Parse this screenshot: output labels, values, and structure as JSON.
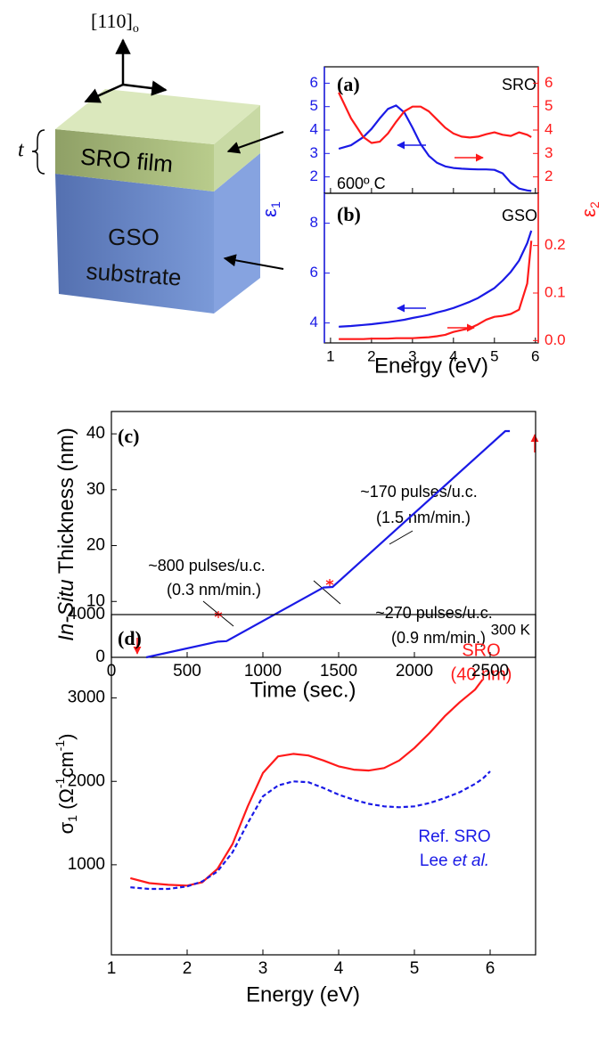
{
  "diagram": {
    "axis_label": [
      "[110]",
      "o"
    ],
    "thickness_label": "t",
    "film_label": "SRO film",
    "substrate_label": [
      "GSO",
      "substrate"
    ]
  },
  "chart_data": [
    {
      "type": "line",
      "label": "(a)",
      "annotations": [
        "SRO",
        "600º C"
      ],
      "ylabel": [
        "ε",
        "1"
      ],
      "y2label": [
        "ε",
        "2"
      ],
      "x": [
        1.2,
        1.5,
        1.8,
        2.0,
        2.2,
        2.4,
        2.6,
        2.8,
        3.0,
        3.2,
        3.4,
        3.6,
        3.8,
        4.0,
        4.2,
        4.4,
        4.6,
        4.8,
        5.0,
        5.2,
        5.4,
        5.6,
        5.8,
        5.9
      ],
      "xlim": [
        0.85,
        6.07
      ],
      "xticks": [
        1,
        2,
        3,
        4,
        5,
        6
      ],
      "ylim": [
        1.3,
        6.7
      ],
      "yticks": [
        2,
        3,
        4,
        5,
        6
      ],
      "y2lim": [
        1.3,
        6.7
      ],
      "y2ticks": [
        2,
        3,
        4,
        5,
        6
      ],
      "series": [
        {
          "color": "#1a1ae6",
          "values": [
            3.2,
            3.35,
            3.7,
            4.05,
            4.5,
            4.9,
            5.05,
            4.75,
            4.1,
            3.4,
            2.9,
            2.6,
            2.45,
            2.38,
            2.35,
            2.33,
            2.32,
            2.32,
            2.3,
            2.15,
            1.75,
            1.5,
            1.42,
            1.4
          ]
        },
        {
          "color": "#ff1a1a",
          "axis": "y2",
          "values": [
            5.6,
            4.5,
            3.7,
            3.45,
            3.5,
            3.85,
            4.35,
            4.8,
            5.0,
            5.0,
            4.8,
            4.45,
            4.1,
            3.85,
            3.72,
            3.68,
            3.72,
            3.82,
            3.9,
            3.8,
            3.75,
            3.9,
            3.8,
            3.7
          ]
        }
      ]
    },
    {
      "type": "line",
      "label": "(b)",
      "annotations": [
        "GSO"
      ],
      "xlabel": "Energy (eV)",
      "x": [
        1.2,
        1.5,
        1.8,
        2.0,
        2.2,
        2.4,
        2.6,
        2.8,
        3.0,
        3.2,
        3.4,
        3.6,
        3.8,
        4.0,
        4.2,
        4.4,
        4.6,
        4.8,
        5.0,
        5.2,
        5.4,
        5.6,
        5.8,
        5.9
      ],
      "xlim": [
        0.85,
        6.07
      ],
      "xticks": [
        1,
        2,
        3,
        4,
        5,
        6
      ],
      "ylim": [
        3.2,
        9.2
      ],
      "yticks": [
        4,
        6,
        8
      ],
      "y2lim": [
        -0.005,
        0.31
      ],
      "y2ticks": [
        {
          "value": 0,
          "label": "0.0"
        },
        0.1,
        0.2
      ],
      "series": [
        {
          "color": "#1a1ae6",
          "values": [
            3.85,
            3.88,
            3.92,
            3.95,
            3.99,
            4.03,
            4.08,
            4.13,
            4.2,
            4.26,
            4.33,
            4.42,
            4.5,
            4.6,
            4.72,
            4.85,
            5.0,
            5.2,
            5.4,
            5.7,
            6.05,
            6.5,
            7.2,
            7.7
          ]
        },
        {
          "color": "#ff1a1a",
          "axis": "y2",
          "values": [
            0.003,
            0.003,
            0.003,
            0.004,
            0.004,
            0.004,
            0.005,
            0.005,
            0.005,
            0.006,
            0.007,
            0.009,
            0.012,
            0.018,
            0.022,
            0.026,
            0.034,
            0.044,
            0.05,
            0.052,
            0.056,
            0.065,
            0.12,
            0.21
          ]
        }
      ]
    },
    {
      "type": "line",
      "label": "(c)",
      "xlabel": "Time (sec.)",
      "ylabel": [
        "In-Situ",
        " Thickness (nm)"
      ],
      "annotations": [
        "~170 pulses/u.c.",
        "(1.5 nm/min.)",
        "~800 pulses/u.c.",
        "(0.3 nm/min.)",
        "~270 pulses/u.c.",
        "(0.9 nm/min.)"
      ],
      "x": [
        230,
        700,
        760,
        1400,
        1460,
        2600,
        2630
      ],
      "xlim": [
        0,
        2800
      ],
      "xticks": [
        0,
        500,
        1000,
        1500,
        2000,
        2500
      ],
      "ylim": [
        0,
        44
      ],
      "yticks": [
        0,
        10,
        20,
        30,
        40
      ],
      "series": [
        {
          "color": "#1a1ae6",
          "values": [
            0,
            2.8,
            2.9,
            12.5,
            12.6,
            40.5,
            40.5
          ]
        }
      ]
    },
    {
      "type": "line",
      "label": "(d)",
      "xlabel": "Energy (eV)",
      "ylabel": [
        "σ",
        "1",
        " (Ω",
        "-1",
        "cm",
        "-1",
        ")"
      ],
      "annotations": [
        "300 K",
        "SRO",
        "(40 nm)",
        "Ref. SRO"
      ],
      "reference": [
        "Lee ",
        "et al."
      ],
      "x": [
        1.25,
        1.5,
        1.75,
        2.0,
        2.2,
        2.4,
        2.6,
        2.8,
        3.0,
        3.2,
        3.4,
        3.6,
        3.8,
        4.0,
        4.2,
        4.4,
        4.6,
        4.8,
        5.0,
        5.2,
        5.4,
        5.6,
        5.8,
        5.9,
        6.0
      ],
      "xlim": [
        1,
        6.6
      ],
      "xticks": [
        1,
        2,
        3,
        4,
        5,
        6
      ],
      "ylim": [
        -80,
        4000
      ],
      "yticks": [
        1000,
        2000,
        3000,
        4000
      ],
      "series": [
        {
          "color": "#ff1a1a",
          "values": [
            840,
            780,
            760,
            750,
            790,
            950,
            1250,
            1700,
            2100,
            2300,
            2330,
            2310,
            2250,
            2180,
            2140,
            2130,
            2160,
            2250,
            2400,
            2580,
            2780,
            2950,
            3100,
            3220,
            null
          ]
        },
        {
          "color": "#1a1ae6",
          "dash": true,
          "values": [
            730,
            710,
            710,
            740,
            800,
            920,
            1150,
            1500,
            1820,
            1950,
            2000,
            1990,
            1920,
            1840,
            1780,
            1730,
            1700,
            1690,
            1700,
            1740,
            1800,
            1870,
            1970,
            2030,
            2120
          ]
        }
      ]
    }
  ]
}
